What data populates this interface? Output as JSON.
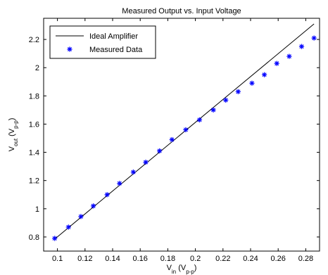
{
  "chart_data": {
    "type": "line",
    "title": "Measured Output vs. Input Voltage",
    "xlabel": {
      "main": "V",
      "sub": "in",
      "unit_open": " (V",
      "unit_sub": "p-p",
      "unit_close": ")"
    },
    "ylabel": {
      "main": "V",
      "sub": "out",
      "unit_open": " (V",
      "unit_sub": "p-p",
      "unit_close": ")"
    },
    "xlim": [
      0.09,
      0.29
    ],
    "ylim": [
      0.7,
      2.35
    ],
    "xticks": [
      0.1,
      0.12,
      0.14,
      0.16,
      0.18,
      0.2,
      0.22,
      0.24,
      0.26,
      0.28
    ],
    "xtick_labels": [
      "0.1",
      "0.12",
      "0.14",
      "0.16",
      "0.18",
      "0.2",
      "0.22",
      "0.24",
      "0.26",
      "0.28"
    ],
    "yticks": [
      0.8,
      1.0,
      1.2,
      1.4,
      1.6,
      1.8,
      2.0,
      2.2
    ],
    "ytick_labels": [
      "0.8",
      "1",
      "1.2",
      "1.4",
      "1.6",
      "1.8",
      "2",
      "2.2"
    ],
    "grid": false,
    "legend_position": "top-left",
    "series": [
      {
        "name": "Ideal Amplifier",
        "style": "line",
        "color": "#000000",
        "x": [
          0.098,
          0.286
        ],
        "y": [
          0.785,
          2.31
        ]
      },
      {
        "name": "Measured Data",
        "style": "markers",
        "marker": "asterisk",
        "color": "#0000ff",
        "x": [
          0.098,
          0.108,
          0.117,
          0.126,
          0.136,
          0.145,
          0.155,
          0.164,
          0.174,
          0.183,
          0.193,
          0.203,
          0.213,
          0.222,
          0.231,
          0.241,
          0.25,
          0.259,
          0.268,
          0.277,
          0.286
        ],
        "y": [
          0.79,
          0.87,
          0.945,
          1.02,
          1.1,
          1.18,
          1.26,
          1.33,
          1.41,
          1.49,
          1.56,
          1.63,
          1.7,
          1.77,
          1.83,
          1.89,
          1.95,
          2.03,
          2.08,
          2.15,
          2.21
        ]
      }
    ]
  }
}
